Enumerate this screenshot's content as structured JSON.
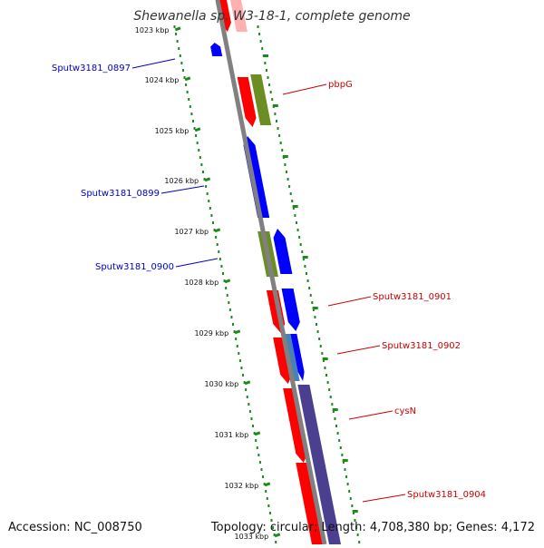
{
  "title": "Shewanella sp. W3-18-1, complete genome",
  "footer": {
    "accession": "Accession: NC_008750",
    "topology": "Topology: circular; Length: 4,708,380 bp; Genes: 4,172"
  },
  "colors": {
    "backbone": "#808080",
    "tick_mark": "#1a8a1a",
    "gene_red": "#ff0000",
    "gene_blue": "#0000ff",
    "gene_green": "#6b8e23",
    "gene_purple": "#4b3f8f",
    "gene_lightblue": "#4682b4",
    "label_blue": "#0000cc",
    "label_red": "#cc0000"
  },
  "ticks": [
    {
      "label": "1023 kbp"
    },
    {
      "label": "1024 kbp"
    },
    {
      "label": "1025 kbp"
    },
    {
      "label": "1026 kbp"
    },
    {
      "label": "1027 kbp"
    },
    {
      "label": "1028 kbp"
    },
    {
      "label": "1029 kbp"
    },
    {
      "label": "1030 kbp"
    },
    {
      "label": "1031 kbp"
    },
    {
      "label": "1032 kbp"
    },
    {
      "label": "1033 kbp"
    }
  ],
  "gene_labels": [
    {
      "text": "Sputw3181_0897",
      "strand": "minus"
    },
    {
      "text": "pbpG",
      "strand": "plus"
    },
    {
      "text": "Sputw3181_0899",
      "strand": "minus"
    },
    {
      "text": "Sputw3181_0900",
      "strand": "minus"
    },
    {
      "text": "Sputw3181_0901",
      "strand": "plus"
    },
    {
      "text": "Sputw3181_0902",
      "strand": "plus"
    },
    {
      "text": "cysN",
      "strand": "plus"
    },
    {
      "text": "Sputw3181_0904",
      "strand": "plus"
    }
  ]
}
